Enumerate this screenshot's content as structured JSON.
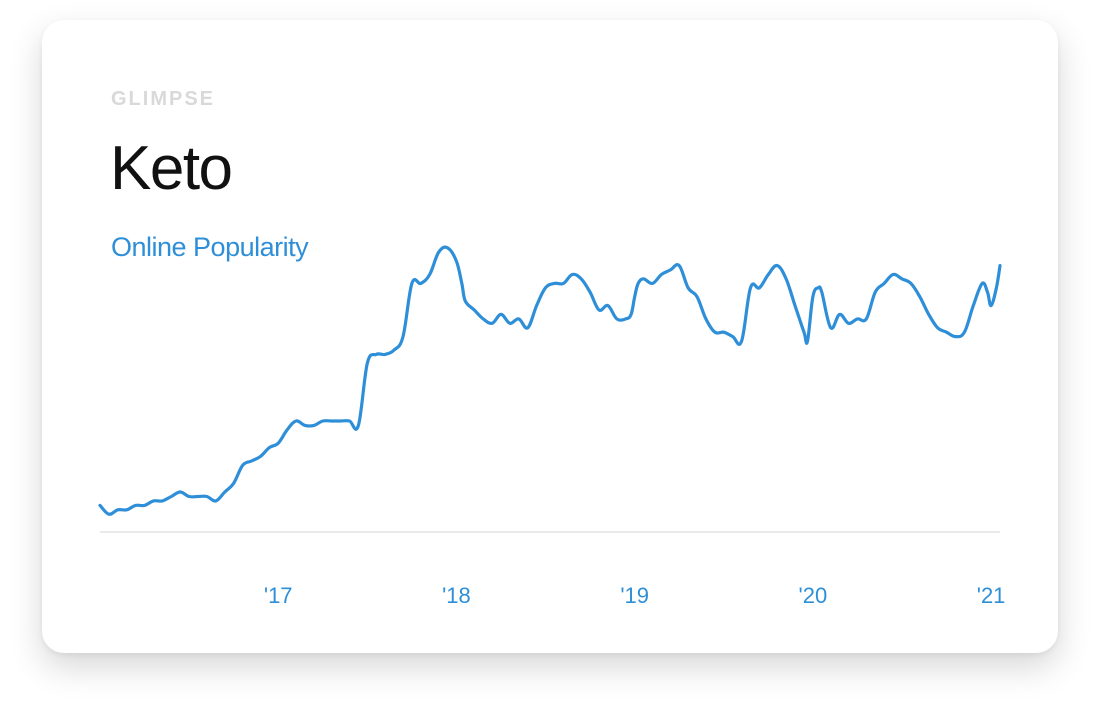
{
  "brand": {
    "logo_text": "GLIMPSE"
  },
  "chart_data": {
    "type": "line",
    "title": "Keto",
    "subtitle": "Online Popularity",
    "xlabel": "",
    "ylabel": "",
    "x_unit": "year",
    "x_range": [
      2016.0,
      2021.05
    ],
    "ylim": [
      0,
      100
    ],
    "grid": true,
    "y_gridlines": [
      33,
      67,
      100
    ],
    "xticks": [
      {
        "value": 2017,
        "label": "'17"
      },
      {
        "value": 2018,
        "label": "'18"
      },
      {
        "value": 2019,
        "label": "'19"
      },
      {
        "value": 2020,
        "label": "'20"
      },
      {
        "value": 2021,
        "label": "'21"
      }
    ],
    "colors": {
      "line": "#2e8fd8",
      "grid": "#ececec",
      "axis": "#e3e3e3",
      "tick": "#2e8fd8"
    },
    "series": [
      {
        "x": [
          2016.0,
          2016.05,
          2016.1,
          2016.15,
          2016.2,
          2016.25,
          2016.3,
          2016.35,
          2016.4,
          2016.45,
          2016.5,
          2016.55,
          2016.6,
          2016.65,
          2016.7,
          2016.75,
          2016.8,
          2016.85,
          2016.9,
          2016.95,
          2017.0,
          2017.05,
          2017.1,
          2017.15,
          2017.2,
          2017.25,
          2017.3,
          2017.35,
          2017.4,
          2017.45,
          2017.5,
          2017.55,
          2017.6,
          2017.65,
          2017.7,
          2017.75,
          2017.8,
          2017.85,
          2017.9,
          2017.95,
          2018.0,
          2018.03,
          2018.05,
          2018.1,
          2018.15,
          2018.2,
          2018.25,
          2018.3,
          2018.35,
          2018.4,
          2018.45,
          2018.5,
          2018.55,
          2018.6,
          2018.65,
          2018.7,
          2018.75,
          2018.8,
          2018.85,
          2018.9,
          2018.95,
          2018.98,
          2019.0,
          2019.02,
          2019.05,
          2019.1,
          2019.15,
          2019.2,
          2019.25,
          2019.3,
          2019.35,
          2019.4,
          2019.45,
          2019.5,
          2019.55,
          2019.6,
          2019.65,
          2019.7,
          2019.75,
          2019.8,
          2019.85,
          2019.9,
          2019.95,
          2019.97,
          2020.0,
          2020.03,
          2020.05,
          2020.1,
          2020.15,
          2020.2,
          2020.25,
          2020.3,
          2020.35,
          2020.4,
          2020.45,
          2020.5,
          2020.55,
          2020.6,
          2020.65,
          2020.7,
          2020.75,
          2020.8,
          2020.85,
          2020.9,
          2020.95,
          2020.98,
          2021.0,
          2021.03,
          2021.05
        ],
        "y": [
          6,
          4,
          5,
          5,
          6,
          6,
          7,
          7,
          8,
          9,
          8,
          8,
          8,
          7,
          9,
          11,
          15,
          16,
          17,
          19,
          20,
          23,
          25,
          24,
          24,
          25,
          25,
          25,
          25,
          24,
          38,
          40,
          40,
          41,
          44,
          56,
          56,
          58,
          63,
          64,
          61,
          56,
          52,
          50,
          48,
          47,
          49,
          47,
          48,
          46,
          51,
          55,
          56,
          56,
          58,
          57,
          54,
          50,
          51,
          48,
          48,
          49,
          53,
          56,
          57,
          56,
          58,
          59,
          60,
          55,
          53,
          48,
          45,
          45,
          44,
          43,
          55,
          55,
          58,
          60,
          57,
          51,
          45,
          43,
          53,
          55,
          54,
          46,
          49,
          47,
          48,
          48,
          54,
          56,
          58,
          57,
          56,
          53,
          49,
          46,
          45,
          44,
          45,
          51,
          56,
          54,
          51,
          55,
          60
        ]
      }
    ]
  }
}
